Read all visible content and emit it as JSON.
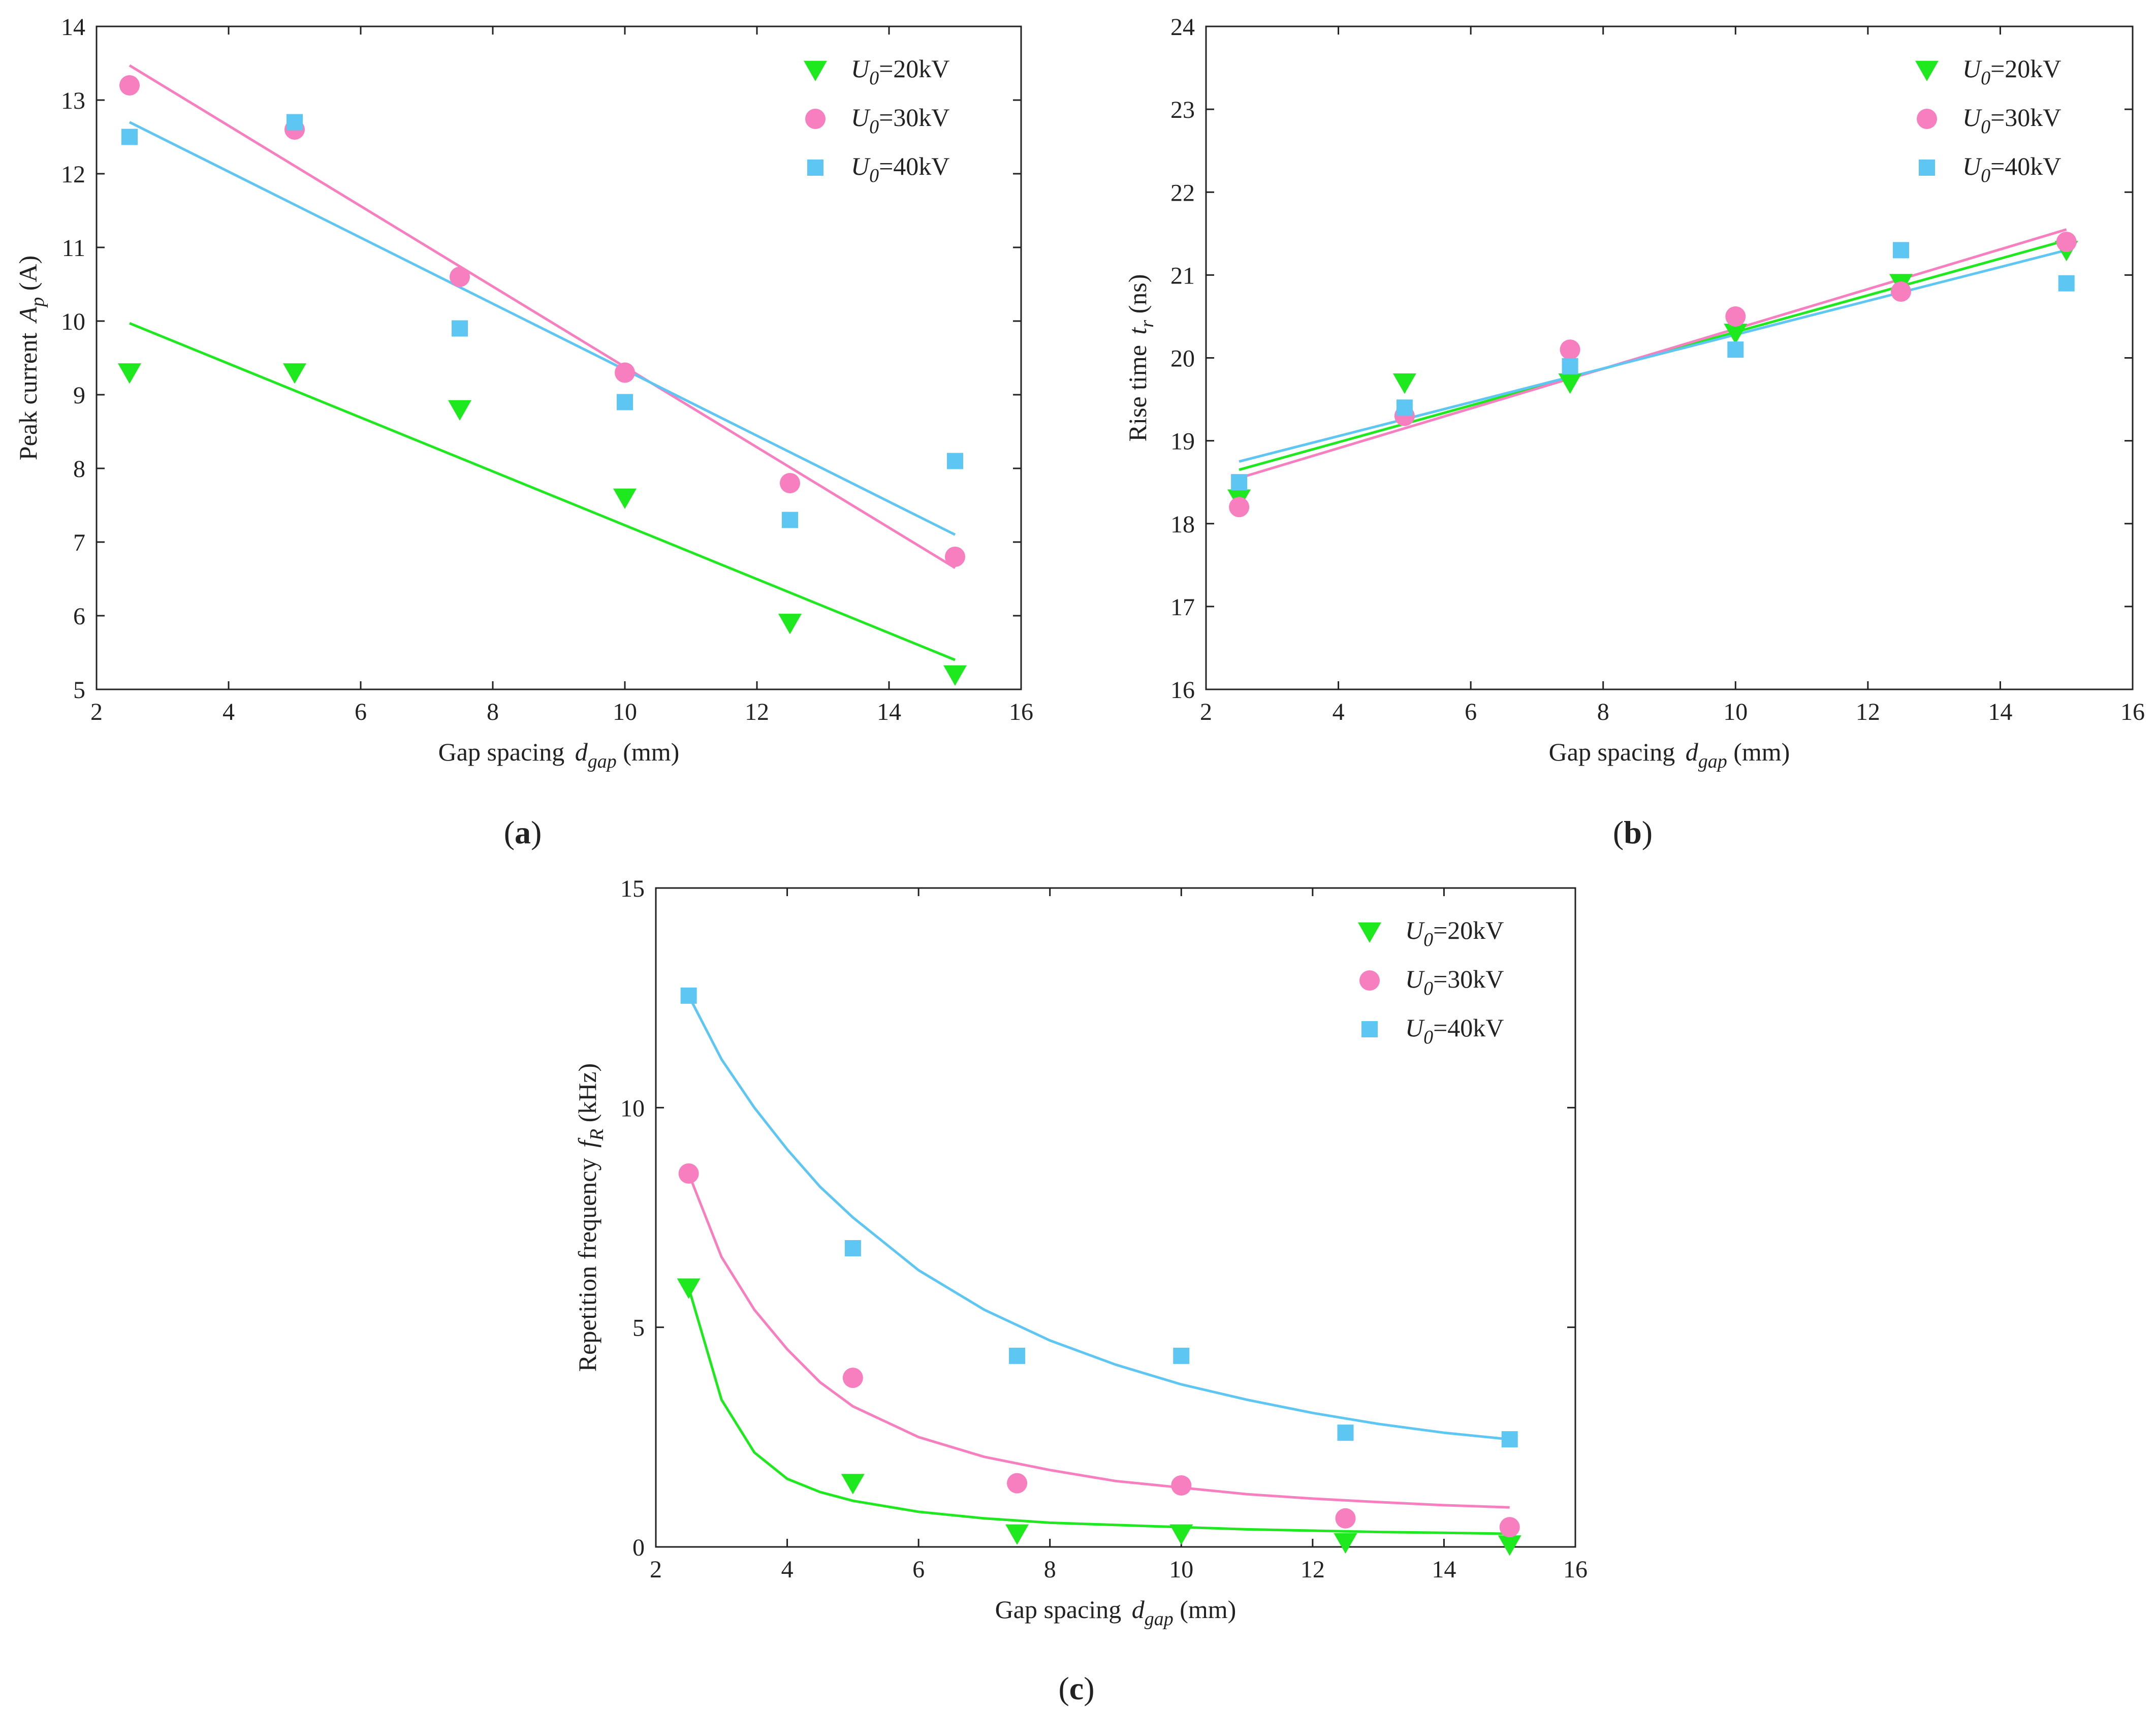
{
  "colors": {
    "u20": "#1ee81e",
    "u30": "#f77ebf",
    "u40": "#5ec6f2",
    "axis": "#222222"
  },
  "chart_data": [
    {
      "id": "a",
      "type": "scatter",
      "panel_label": {
        "open": "(",
        "letter": "a",
        "close": ")"
      },
      "xlabel": {
        "main": "Gap spacing ",
        "var": "d",
        "sub": "gap",
        "unit": " (mm)"
      },
      "ylabel": {
        "main": "Peak current ",
        "var": "A",
        "sub": "p",
        "unit": " (A)"
      },
      "xlim": [
        2,
        16
      ],
      "ylim": [
        5,
        14
      ],
      "xticks": [
        2,
        4,
        6,
        8,
        10,
        12,
        14,
        16
      ],
      "yticks": [
        5,
        6,
        7,
        8,
        9,
        10,
        11,
        12,
        13,
        14
      ],
      "legend_position": "top-right",
      "fit": "linear",
      "series": [
        {
          "name": "U0=20kV",
          "var": "U",
          "sub": "0",
          "text": "=20kV",
          "marker": "triangle-down",
          "color_key": "u20",
          "x": [
            2.5,
            5,
            7.5,
            10,
            12.5,
            15
          ],
          "y": [
            9.3,
            9.3,
            8.8,
            7.6,
            5.9,
            5.2
          ],
          "fit_points": [
            [
              2.5,
              9.97
            ],
            [
              15,
              5.4
            ]
          ]
        },
        {
          "name": "U0=30kV",
          "var": "U",
          "sub": "0",
          "text": "=30kV",
          "marker": "circle",
          "color_key": "u30",
          "x": [
            2.5,
            5,
            7.5,
            10,
            12.5,
            15
          ],
          "y": [
            13.2,
            12.6,
            10.6,
            9.3,
            7.8,
            6.8
          ],
          "fit_points": [
            [
              2.5,
              13.47
            ],
            [
              15,
              6.65
            ]
          ]
        },
        {
          "name": "U0=40kV",
          "var": "U",
          "sub": "0",
          "text": "=40kV",
          "marker": "square",
          "color_key": "u40",
          "x": [
            2.5,
            5,
            7.5,
            10,
            12.5,
            15
          ],
          "y": [
            12.5,
            12.7,
            9.9,
            8.9,
            7.3,
            8.1
          ],
          "fit_points": [
            [
              2.5,
              12.7
            ],
            [
              15,
              7.1
            ]
          ]
        }
      ]
    },
    {
      "id": "b",
      "type": "scatter",
      "panel_label": {
        "open": "(",
        "letter": "b",
        "close": ")"
      },
      "xlabel": {
        "main": "Gap spacing ",
        "var": "d",
        "sub": "gap",
        "unit": " (mm)"
      },
      "ylabel": {
        "main": "Rise time ",
        "var": "t",
        "sub": "r",
        "unit": " (ns)"
      },
      "xlim": [
        2,
        16
      ],
      "ylim": [
        16,
        24
      ],
      "xticks": [
        2,
        4,
        6,
        8,
        10,
        12,
        14,
        16
      ],
      "yticks": [
        16,
        17,
        18,
        19,
        20,
        21,
        22,
        23,
        24
      ],
      "legend_position": "top-right",
      "fit": "linear",
      "series": [
        {
          "name": "U0=20kV",
          "var": "U",
          "sub": "0",
          "text": "=20kV",
          "marker": "triangle-down",
          "color_key": "u20",
          "x": [
            2.5,
            5,
            7.5,
            10,
            12.5,
            15
          ],
          "y": [
            18.3,
            19.7,
            19.7,
            20.3,
            20.9,
            21.3
          ],
          "fit_points": [
            [
              2.5,
              18.65
            ],
            [
              15,
              21.42
            ]
          ]
        },
        {
          "name": "U0=30kV",
          "var": "U",
          "sub": "0",
          "text": "=30kV",
          "marker": "circle",
          "color_key": "u30",
          "x": [
            2.5,
            5,
            7.5,
            10,
            12.5,
            15
          ],
          "y": [
            18.2,
            19.3,
            20.1,
            20.5,
            20.8,
            21.4
          ],
          "fit_points": [
            [
              2.5,
              18.55
            ],
            [
              15,
              21.55
            ]
          ]
        },
        {
          "name": "U0=40kV",
          "var": "U",
          "sub": "0",
          "text": "=40kV",
          "marker": "square",
          "color_key": "u40",
          "x": [
            2.5,
            5,
            7.5,
            10,
            12.5,
            15
          ],
          "y": [
            18.5,
            19.4,
            19.9,
            20.1,
            21.3,
            20.9
          ],
          "fit_points": [
            [
              2.5,
              18.75
            ],
            [
              15,
              21.3
            ]
          ]
        }
      ]
    },
    {
      "id": "c",
      "type": "scatter",
      "panel_label": {
        "open": "(",
        "letter": "c",
        "close": ")"
      },
      "xlabel": {
        "main": "Gap spacing ",
        "var": "d",
        "sub": "gap",
        "unit": " (mm)"
      },
      "ylabel": {
        "main": "Repetition frequency ",
        "var": "f",
        "sub": "R",
        "unit": " (kHz)"
      },
      "xlim": [
        2,
        16
      ],
      "ylim": [
        0,
        15
      ],
      "xticks": [
        2,
        4,
        6,
        8,
        10,
        12,
        14,
        16
      ],
      "yticks": [
        0,
        5,
        10,
        15
      ],
      "legend_position": "top-right",
      "fit": "power-decay",
      "series": [
        {
          "name": "U0=20kV",
          "var": "U",
          "sub": "0",
          "text": "=20kV",
          "marker": "triangle-down",
          "color_key": "u20",
          "x": [
            2.5,
            5,
            7.5,
            10,
            12.5,
            15
          ],
          "y": [
            5.9,
            1.45,
            0.3,
            0.3,
            0.1,
            0.05
          ],
          "fit_points": [
            [
              2.5,
              5.9
            ],
            [
              3,
              3.35
            ],
            [
              3.5,
              2.15
            ],
            [
              4,
              1.55
            ],
            [
              4.5,
              1.25
            ],
            [
              5,
              1.05
            ],
            [
              6,
              0.8
            ],
            [
              7,
              0.65
            ],
            [
              8,
              0.55
            ],
            [
              9,
              0.5
            ],
            [
              10,
              0.45
            ],
            [
              11,
              0.4
            ],
            [
              12,
              0.37
            ],
            [
              13,
              0.34
            ],
            [
              14,
              0.32
            ],
            [
              15,
              0.3
            ]
          ]
        },
        {
          "name": "U0=30kV",
          "var": "U",
          "sub": "0",
          "text": "=30kV",
          "marker": "circle",
          "color_key": "u30",
          "x": [
            2.5,
            5,
            7.5,
            10,
            12.5,
            15
          ],
          "y": [
            8.5,
            3.85,
            1.45,
            1.4,
            0.65,
            0.45
          ],
          "fit_points": [
            [
              2.5,
              8.5
            ],
            [
              3,
              6.6
            ],
            [
              3.5,
              5.4
            ],
            [
              4,
              4.5
            ],
            [
              4.5,
              3.75
            ],
            [
              5,
              3.2
            ],
            [
              6,
              2.5
            ],
            [
              7,
              2.05
            ],
            [
              8,
              1.75
            ],
            [
              9,
              1.5
            ],
            [
              10,
              1.35
            ],
            [
              11,
              1.2
            ],
            [
              12,
              1.1
            ],
            [
              13,
              1.02
            ],
            [
              14,
              0.95
            ],
            [
              15,
              0.9
            ]
          ]
        },
        {
          "name": "U0=40kV",
          "var": "U",
          "sub": "0",
          "text": "=40kV",
          "marker": "square",
          "color_key": "u40",
          "x": [
            2.5,
            5,
            7.5,
            10,
            12.5,
            15
          ],
          "y": [
            12.55,
            6.8,
            4.35,
            4.35,
            2.6,
            2.45
          ],
          "fit_points": [
            [
              2.5,
              12.55
            ],
            [
              3,
              11.1
            ],
            [
              3.5,
              10.0
            ],
            [
              4,
              9.05
            ],
            [
              4.5,
              8.2
            ],
            [
              5,
              7.5
            ],
            [
              6,
              6.3
            ],
            [
              7,
              5.4
            ],
            [
              8,
              4.7
            ],
            [
              9,
              4.15
            ],
            [
              10,
              3.7
            ],
            [
              11,
              3.35
            ],
            [
              12,
              3.05
            ],
            [
              13,
              2.8
            ],
            [
              14,
              2.6
            ],
            [
              15,
              2.45
            ]
          ]
        }
      ]
    }
  ]
}
